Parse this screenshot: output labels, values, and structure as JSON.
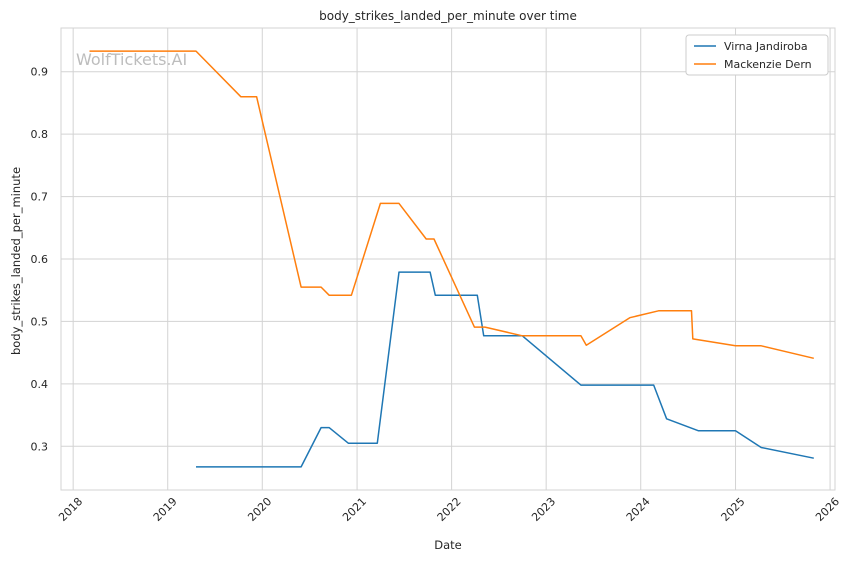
{
  "chart_data": {
    "type": "line",
    "title": "body_strikes_landed_per_minute over time",
    "xlabel": "Date",
    "ylabel": "body_strikes_landed_per_minute",
    "watermark": "WolfTickets.AI",
    "xlim": [
      "2017-11-15",
      "2026-01-20"
    ],
    "ylim": [
      0.23,
      0.97
    ],
    "x_ticks": [
      "2018-01-01",
      "2019-01-01",
      "2020-01-01",
      "2021-01-01",
      "2022-01-01",
      "2023-01-01",
      "2024-01-01",
      "2025-01-01",
      "2026-01-01"
    ],
    "x_tick_labels": [
      "2018",
      "2019",
      "2020",
      "2021",
      "2022",
      "2023",
      "2024",
      "2025",
      "2026"
    ],
    "y_ticks": [
      0.3,
      0.4,
      0.5,
      0.6,
      0.7,
      0.8,
      0.9
    ],
    "y_tick_labels": [
      "0.3",
      "0.4",
      "0.5",
      "0.6",
      "0.7",
      "0.8",
      "0.9"
    ],
    "grid": true,
    "legend_position": "top-right",
    "series": [
      {
        "name": "Virna Jandiroba",
        "color": "#1f77b4",
        "points": [
          [
            "2019-04-20",
            0.267
          ],
          [
            "2020-05-30",
            0.267
          ],
          [
            "2020-08-15",
            0.33
          ],
          [
            "2020-09-15",
            0.33
          ],
          [
            "2020-11-28",
            0.305
          ],
          [
            "2021-03-20",
            0.305
          ],
          [
            "2021-06-12",
            0.579
          ],
          [
            "2021-10-10",
            0.579
          ],
          [
            "2021-10-30",
            0.542
          ],
          [
            "2022-04-10",
            0.542
          ],
          [
            "2022-05-05",
            0.477
          ],
          [
            "2022-10-01",
            0.477
          ],
          [
            "2023-05-15",
            0.398
          ],
          [
            "2024-02-20",
            0.398
          ],
          [
            "2024-04-10",
            0.344
          ],
          [
            "2024-08-10",
            0.325
          ],
          [
            "2025-01-01",
            0.325
          ],
          [
            "2025-04-10",
            0.298
          ],
          [
            "2025-10-30",
            0.281
          ]
        ]
      },
      {
        "name": "Mackenzie Dern",
        "color": "#ff7f0e",
        "points": [
          [
            "2018-03-05",
            0.933
          ],
          [
            "2019-04-20",
            0.933
          ],
          [
            "2019-10-10",
            0.86
          ],
          [
            "2019-12-10",
            0.86
          ],
          [
            "2020-05-30",
            0.555
          ],
          [
            "2020-08-15",
            0.555
          ],
          [
            "2020-09-15",
            0.542
          ],
          [
            "2020-12-10",
            0.542
          ],
          [
            "2021-04-01",
            0.689
          ],
          [
            "2021-06-12",
            0.689
          ],
          [
            "2021-09-25",
            0.632
          ],
          [
            "2021-10-25",
            0.632
          ],
          [
            "2022-03-30",
            0.491
          ],
          [
            "2022-05-10",
            0.491
          ],
          [
            "2022-10-01",
            0.477
          ],
          [
            "2023-05-15",
            0.477
          ],
          [
            "2023-06-05",
            0.462
          ],
          [
            "2023-11-20",
            0.506
          ],
          [
            "2024-03-10",
            0.517
          ],
          [
            "2024-07-15",
            0.517
          ],
          [
            "2024-07-20",
            0.472
          ],
          [
            "2025-01-01",
            0.461
          ],
          [
            "2025-04-10",
            0.461
          ],
          [
            "2025-10-30",
            0.441
          ]
        ]
      }
    ]
  }
}
